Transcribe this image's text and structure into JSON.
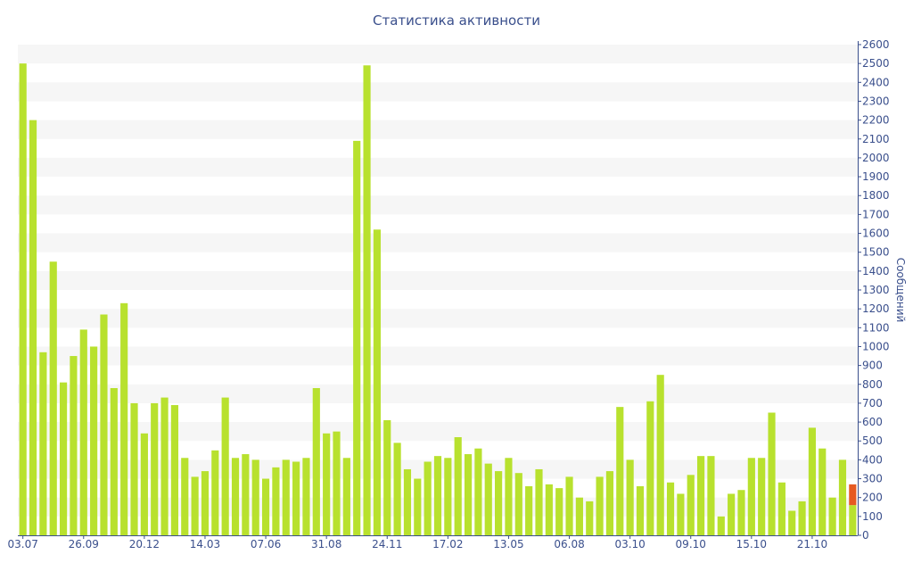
{
  "chart_data": {
    "type": "bar",
    "title": "Статистика активности",
    "ylabel": "Сообщений",
    "xlabel": "",
    "ylim": [
      0,
      2600
    ],
    "ytick_step": 100,
    "x_tick_labels": [
      "03.07",
      "26.09",
      "20.12",
      "14.03",
      "07.06",
      "31.08",
      "24.11",
      "17.02",
      "13.05",
      "06.08",
      "03.10",
      "09.10",
      "15.10",
      "21.10"
    ],
    "x_tick_positions": [
      0,
      6,
      12,
      18,
      24,
      30,
      36,
      42,
      48,
      54,
      60,
      66,
      72,
      78
    ],
    "values": [
      2500,
      2200,
      970,
      1450,
      810,
      950,
      1090,
      1000,
      1170,
      780,
      1230,
      700,
      540,
      700,
      730,
      690,
      410,
      310,
      340,
      450,
      730,
      410,
      430,
      400,
      300,
      360,
      400,
      390,
      410,
      780,
      540,
      550,
      410,
      2090,
      2490,
      1620,
      610,
      490,
      350,
      300,
      390,
      420,
      410,
      520,
      430,
      460,
      380,
      340,
      410,
      330,
      260,
      350,
      270,
      250,
      310,
      200,
      180,
      310,
      340,
      680,
      400,
      260,
      710,
      850,
      280,
      220,
      320,
      420,
      420,
      100,
      220,
      240,
      410,
      410,
      650,
      280,
      130,
      180,
      570,
      460,
      200,
      400,
      160
    ],
    "highlight": {
      "index": 82,
      "base": 160,
      "top": 270
    },
    "colors": {
      "bar": "#b8e12e",
      "highlight": "#e65a22",
      "band": "#f6f6f6",
      "text": "#3a4f8c"
    },
    "grid": true
  }
}
